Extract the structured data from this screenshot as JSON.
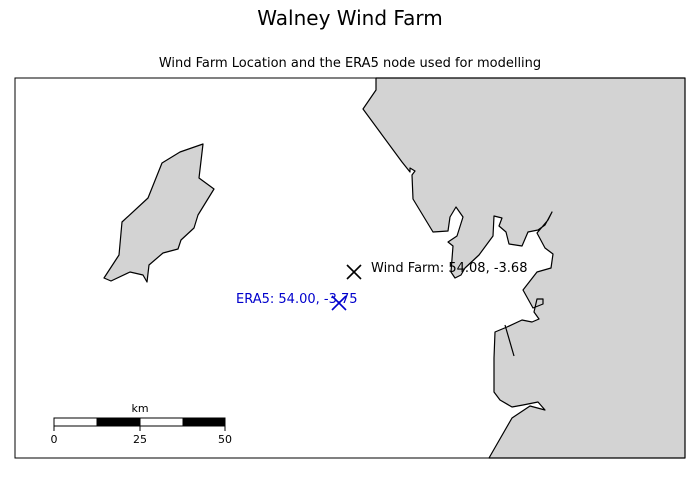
{
  "title": "Walney Wind Farm",
  "subtitle": "Wind Farm Location and the ERA5 node used for modelling",
  "markers": {
    "wind_farm": {
      "label": "Wind Farm: 54.08, -3.68",
      "lat": 54.08,
      "lon": -3.68,
      "color": "#000000"
    },
    "era5": {
      "label": "ERA5: 54.00, -3.75",
      "lat": 54.0,
      "lon": -3.75,
      "color": "#0000cc"
    }
  },
  "scale_bar": {
    "unit": "km",
    "ticks": [
      "0",
      "25",
      "50"
    ]
  },
  "colors": {
    "land": "#d3d3d3",
    "sea": "#ffffff",
    "coastline": "#000000"
  }
}
